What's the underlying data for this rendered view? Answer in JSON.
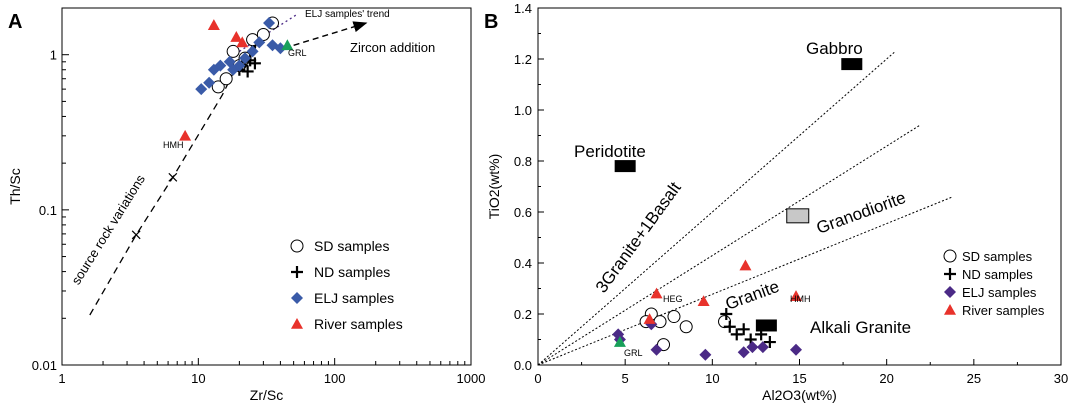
{
  "panels": {
    "a": {
      "letter": "A"
    },
    "b": {
      "letter": "B"
    }
  },
  "colors": {
    "elj": "#3a5ba8",
    "elj_b": "#4b2a86",
    "river": "#e8322b",
    "grl": "#18a05a",
    "grey_block": "#c8c8c8"
  },
  "chart_data": [
    {
      "panel": "A",
      "type": "scatter",
      "xscale": "log",
      "yscale": "log",
      "xlabel": "Zr/Sc",
      "ylabel": "Th/Sc",
      "xlim": [
        1,
        1000
      ],
      "ylim": [
        0.01,
        2
      ],
      "x_ticks": [
        1,
        10,
        100,
        1000
      ],
      "x_tick_labels": [
        "1",
        "10",
        "100",
        "1000"
      ],
      "y_ticks": [
        0.01,
        0.1,
        1
      ],
      "y_tick_labels": [
        "0.01",
        "0.1",
        "1"
      ],
      "legend_position": "bottom-right",
      "legend": [
        {
          "name": "SD samples",
          "marker": "open-circle"
        },
        {
          "name": "ND samples",
          "marker": "plus"
        },
        {
          "name": "ELJ samples",
          "marker": "diamond"
        },
        {
          "name": "River samples",
          "marker": "triangle"
        }
      ],
      "series": [
        {
          "name": "SD samples",
          "x": [
            18,
            20,
            22,
            14,
            16,
            25,
            30,
            35
          ],
          "y": [
            1.05,
            0.85,
            0.95,
            0.62,
            0.7,
            1.25,
            1.35,
            1.6
          ]
        },
        {
          "name": "ND samples",
          "x": [
            20,
            21,
            22,
            23,
            24,
            26
          ],
          "y": [
            0.8,
            0.85,
            0.9,
            0.78,
            0.92,
            0.88
          ]
        },
        {
          "name": "ELJ samples",
          "x": [
            10.5,
            12,
            13,
            14.5,
            17,
            18,
            20,
            22,
            25,
            28,
            35,
            40,
            33
          ],
          "y": [
            0.6,
            0.66,
            0.8,
            0.85,
            0.9,
            0.8,
            0.85,
            0.95,
            1.05,
            1.2,
            1.15,
            1.1,
            1.6
          ]
        },
        {
          "name": "River samples",
          "x": [
            8,
            13,
            19,
            21
          ],
          "y": [
            0.3,
            1.55,
            1.3,
            1.2
          ]
        },
        {
          "name": "GRL",
          "x": [
            45
          ],
          "y": [
            1.15
          ]
        }
      ],
      "reference_lines": [
        {
          "name": "source rock variations",
          "x": [
            1.6,
            3.5,
            6.5,
            15,
            21
          ],
          "y": [
            0.021,
            0.069,
            0.162,
            0.55,
            1.0
          ]
        },
        {
          "name": "ELJ samples' trend",
          "x": [
            20,
            52
          ],
          "y": [
            1.05,
            1.8
          ]
        },
        {
          "name": "Zircon addition",
          "x": [
            50,
            170
          ],
          "y": [
            1.15,
            1.6
          ]
        }
      ],
      "annotations": {
        "source_rock": "source rock variations",
        "elj_trend": "ELJ samples' trend",
        "zircon": "Zircon addition",
        "grl": "GRL",
        "hmh": "HMH"
      }
    },
    {
      "panel": "B",
      "type": "scatter",
      "xlabel": "Al2O3(wt%)",
      "ylabel": "TiO2(wt%)",
      "xlim": [
        0,
        30
      ],
      "ylim": [
        0,
        1.4
      ],
      "x_ticks": [
        0,
        5,
        10,
        15,
        20,
        25,
        30
      ],
      "y_ticks": [
        0.0,
        0.2,
        0.4,
        0.6,
        0.8,
        1.0,
        1.2,
        1.4
      ],
      "y_tick_labels": [
        "0.0",
        "0.2",
        "0.4",
        "0.6",
        "0.8",
        "1.0",
        "1.2",
        "1.4"
      ],
      "legend_position": "right",
      "legend": [
        {
          "name": "SD samples",
          "marker": "open-circle"
        },
        {
          "name": "ND samples",
          "marker": "plus"
        },
        {
          "name": "ELJ samples",
          "marker": "diamond"
        },
        {
          "name": "River samples",
          "marker": "triangle"
        }
      ],
      "series": [
        {
          "name": "SD samples",
          "x": [
            6.5,
            7.0,
            7.2,
            7.8,
            8.5,
            6.2,
            10.7
          ],
          "y": [
            0.2,
            0.17,
            0.08,
            0.19,
            0.15,
            0.17,
            0.17
          ]
        },
        {
          "name": "ND samples",
          "x": [
            10.8,
            11.0,
            11.4,
            11.8,
            12.2,
            12.8,
            13.3
          ],
          "y": [
            0.2,
            0.15,
            0.12,
            0.14,
            0.1,
            0.12,
            0.09
          ]
        },
        {
          "name": "ELJ samples",
          "x": [
            4.6,
            6.5,
            6.8,
            9.6,
            11.8,
            12.3,
            12.9,
            14.8,
            4.7
          ],
          "y": [
            0.12,
            0.16,
            0.06,
            0.04,
            0.05,
            0.07,
            0.07,
            0.06,
            0.1
          ]
        },
        {
          "name": "River samples",
          "x": [
            6.8,
            9.5,
            11.9,
            14.8,
            6.4
          ],
          "y": [
            0.28,
            0.25,
            0.39,
            0.27,
            0.18
          ]
        },
        {
          "name": "GRL",
          "x": [
            4.7
          ],
          "y": [
            0.09
          ]
        }
      ],
      "composition_blocks": [
        {
          "name": "Gabbro",
          "x": 18.0,
          "y": 1.18
        },
        {
          "name": "Peridotite",
          "x": 5.0,
          "y": 0.78
        },
        {
          "name": "Granodiorite",
          "x": 14.9,
          "y": 0.585
        },
        {
          "name": "Alkali Granite",
          "x": 13.1,
          "y": 0.155
        }
      ],
      "mixing_lines": [
        {
          "name": "3Granite+1Basalt",
          "x": [
            0,
            20.5
          ],
          "y": [
            0,
            1.23
          ]
        },
        {
          "name": "upper",
          "x": [
            0,
            21.9
          ],
          "y": [
            0,
            0.94
          ]
        },
        {
          "name": "Granite",
          "x": [
            0,
            23.8
          ],
          "y": [
            0,
            0.66
          ]
        }
      ],
      "annotations": {
        "gabbro": "Gabbro",
        "peridotite": "Peridotite",
        "granodiorite": "Granodiorite",
        "alkali_granite": "Alkali Granite",
        "basalt_mix": "3Granite+1Basalt",
        "granite": "Granite",
        "heg": "HEG",
        "hmh": "HMH",
        "grl": "GRL"
      }
    }
  ]
}
